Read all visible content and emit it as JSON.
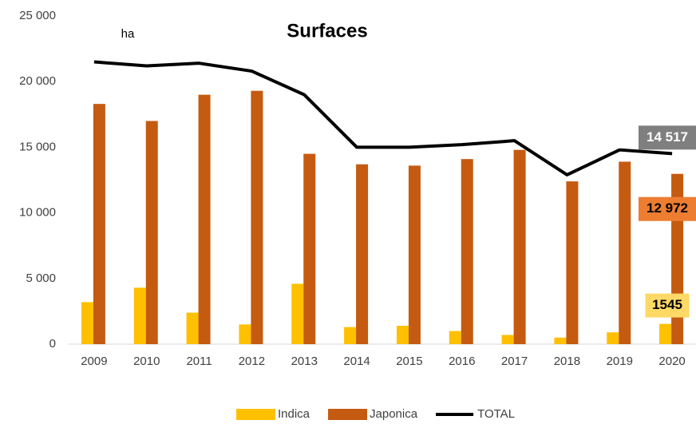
{
  "chart_data": {
    "type": "bar",
    "title": "Surfaces",
    "annotations": [
      "ha"
    ],
    "categories": [
      "2009",
      "2010",
      "2011",
      "2012",
      "2013",
      "2014",
      "2015",
      "2016",
      "2017",
      "2018",
      "2019",
      "2020"
    ],
    "series": [
      {
        "name": "Indica",
        "type": "bar",
        "color": "#ffc000",
        "values": [
          3200,
          4300,
          2400,
          1500,
          4600,
          1300,
          1400,
          1000,
          700,
          500,
          900,
          1545
        ],
        "value_labels": [
          null,
          null,
          null,
          null,
          null,
          null,
          null,
          null,
          null,
          null,
          null,
          "1545"
        ]
      },
      {
        "name": "Japonica",
        "type": "bar",
        "color": "#c55a11",
        "values": [
          18300,
          17000,
          19000,
          19300,
          14500,
          13700,
          13600,
          14100,
          14800,
          12400,
          13900,
          12972
        ],
        "value_labels": [
          null,
          null,
          null,
          null,
          null,
          null,
          null,
          null,
          null,
          null,
          null,
          "12 972"
        ]
      },
      {
        "name": "TOTAL",
        "type": "line",
        "color": "#000000",
        "values": [
          21500,
          21200,
          21400,
          20800,
          19000,
          15000,
          15000,
          15200,
          15500,
          12900,
          14800,
          14517
        ],
        "value_labels": [
          null,
          null,
          null,
          null,
          null,
          null,
          null,
          null,
          null,
          null,
          null,
          "14 517"
        ]
      }
    ],
    "ylim": [
      0,
      25000
    ],
    "yticks": [
      0,
      {
        "value": 5000,
        "label": "5 000"
      },
      {
        "value": 10000,
        "label": "10 000"
      },
      {
        "value": 15000,
        "label": "15 000"
      },
      {
        "value": 20000,
        "label": "20 000"
      },
      {
        "value": 25000,
        "label": "25 000"
      }
    ],
    "grid": false,
    "legend": "bottom"
  }
}
